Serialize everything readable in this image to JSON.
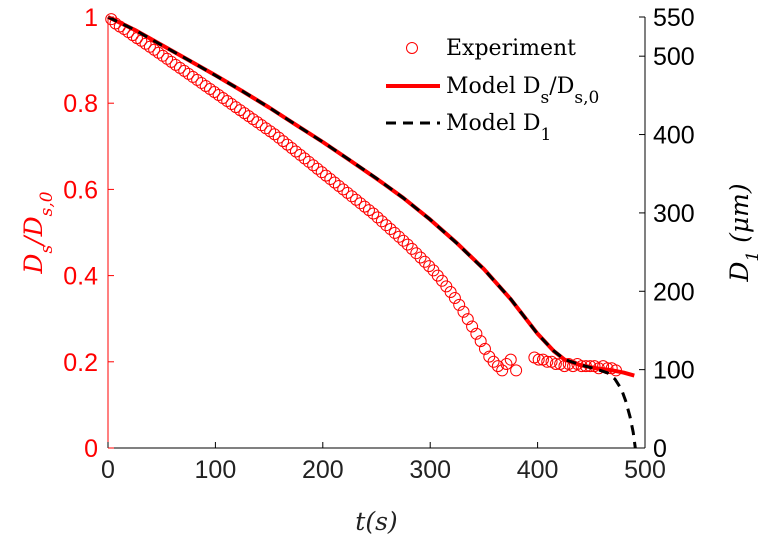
{
  "chart_data": {
    "type": "line",
    "title": "",
    "xlabel": "t(s)",
    "ylabel_left": "D_s/D_{s,0}",
    "ylabel_right": "D_1 (μm)",
    "xlim": [
      0,
      500
    ],
    "ylim_left": [
      0,
      1
    ],
    "ylim_right": [
      0,
      550
    ],
    "x_ticks": [
      "0",
      "100",
      "200",
      "300",
      "400",
      "500"
    ],
    "y_left_ticks": [
      "0",
      "0.2",
      "0.4",
      "0.6",
      "0.8",
      "1"
    ],
    "y_right_ticks": [
      "0",
      "100",
      "200",
      "300",
      "400",
      "500",
      "550"
    ],
    "grid": false,
    "legend_position": "top-right",
    "colors": {
      "left_axis": "#ff0000",
      "right_axis": "#000000",
      "experiment": "#ff0000",
      "model_ds": "#ff0000",
      "model_d1": "#000000"
    },
    "legend": {
      "experiment": "Experiment",
      "model_ds": "Model D_s/D_{s,0}",
      "model_d1": "Model D_1"
    },
    "series": [
      {
        "name": "Experiment",
        "style": "markers",
        "x": [
          3,
          7,
          11,
          15,
          19,
          23,
          27,
          31,
          35,
          39,
          43,
          47,
          51,
          55,
          59,
          63,
          67,
          71,
          75,
          79,
          83,
          87,
          91,
          95,
          99,
          103,
          107,
          111,
          115,
          119,
          123,
          127,
          131,
          135,
          139,
          143,
          147,
          151,
          155,
          159,
          163,
          167,
          171,
          175,
          179,
          183,
          187,
          191,
          195,
          199,
          203,
          207,
          211,
          215,
          219,
          223,
          227,
          231,
          235,
          239,
          243,
          247,
          251,
          255,
          259,
          263,
          267,
          271,
          275,
          279,
          283,
          287,
          291,
          295,
          299,
          303,
          307,
          311,
          315,
          319,
          323,
          327,
          331,
          335,
          339,
          343,
          347,
          351,
          355,
          359,
          363,
          367,
          371,
          375,
          380,
          397,
          401,
          405,
          409,
          413,
          417,
          421,
          425,
          429,
          433,
          437,
          441,
          445,
          449,
          453,
          457,
          461,
          465,
          469,
          473
        ],
        "y": [
          0.995,
          0.985,
          0.978,
          0.972,
          0.965,
          0.958,
          0.951,
          0.945,
          0.938,
          0.931,
          0.924,
          0.917,
          0.91,
          0.903,
          0.896,
          0.889,
          0.882,
          0.875,
          0.868,
          0.861,
          0.854,
          0.847,
          0.84,
          0.833,
          0.826,
          0.819,
          0.812,
          0.805,
          0.798,
          0.791,
          0.784,
          0.777,
          0.77,
          0.763,
          0.756,
          0.749,
          0.742,
          0.735,
          0.728,
          0.72,
          0.712,
          0.704,
          0.696,
          0.688,
          0.68,
          0.672,
          0.664,
          0.656,
          0.648,
          0.64,
          0.632,
          0.624,
          0.616,
          0.608,
          0.6,
          0.592,
          0.584,
          0.576,
          0.568,
          0.56,
          0.552,
          0.544,
          0.535,
          0.526,
          0.517,
          0.508,
          0.499,
          0.49,
          0.481,
          0.472,
          0.462,
          0.452,
          0.442,
          0.432,
          0.422,
          0.412,
          0.4,
          0.388,
          0.375,
          0.362,
          0.348,
          0.332,
          0.316,
          0.299,
          0.282,
          0.265,
          0.248,
          0.23,
          0.212,
          0.2,
          0.19,
          0.18,
          0.195,
          0.205,
          0.18,
          0.21,
          0.205,
          0.205,
          0.2,
          0.2,
          0.195,
          0.195,
          0.19,
          0.195,
          0.19,
          0.195,
          0.19,
          0.19,
          0.19,
          0.19,
          0.185,
          0.19,
          0.185,
          0.185,
          0.18
        ]
      },
      {
        "name": "Model D_s/D_{s,0}",
        "style": "solid",
        "x": [
          0,
          25,
          50,
          75,
          100,
          125,
          150,
          175,
          200,
          225,
          250,
          275,
          300,
          325,
          350,
          375,
          400,
          415,
          425,
          440,
          455,
          470,
          480,
          490
        ],
        "y": [
          1.0,
          0.97,
          0.935,
          0.9,
          0.865,
          0.828,
          0.79,
          0.75,
          0.71,
          0.668,
          0.625,
          0.58,
          0.53,
          0.475,
          0.415,
          0.345,
          0.265,
          0.225,
          0.205,
          0.192,
          0.185,
          0.18,
          0.175,
          0.168
        ]
      },
      {
        "name": "Model D_1",
        "style": "dashed",
        "x": [
          0,
          25,
          50,
          75,
          100,
          125,
          150,
          175,
          200,
          225,
          250,
          275,
          300,
          325,
          350,
          375,
          400,
          415,
          425,
          440,
          455,
          465,
          472,
          478,
          482,
          486,
          489,
          491
        ],
        "y": [
          550,
          533.5,
          514,
          495,
          475.5,
          455.5,
          434.5,
          412.5,
          390.5,
          367.5,
          344,
          319,
          291.5,
          261,
          228,
          190,
          145.5,
          124,
          113,
          106,
          100.5,
          96,
          88,
          75,
          60,
          40,
          20,
          0
        ]
      }
    ]
  }
}
